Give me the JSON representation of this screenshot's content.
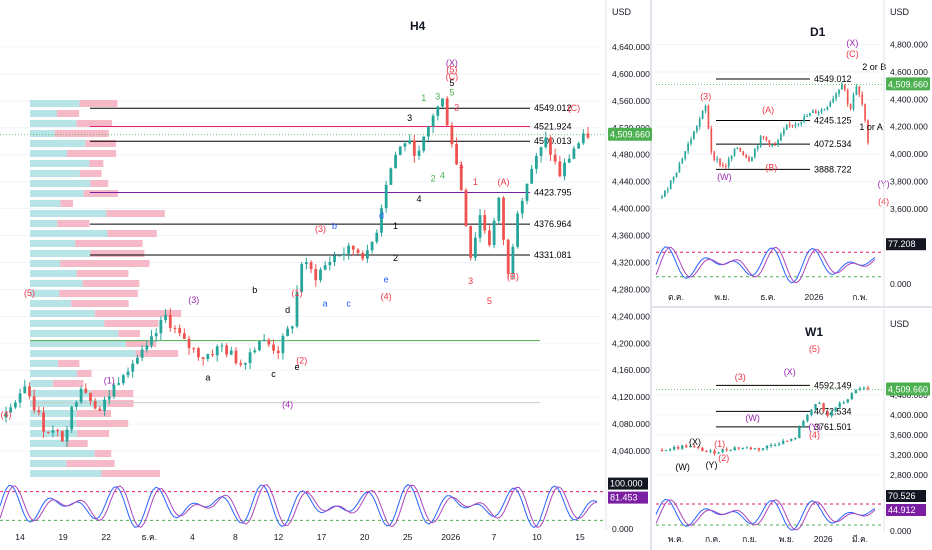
{
  "currency": "USD",
  "colors": {
    "up": "#26a69a",
    "down": "#ef5350",
    "wave_purple": "#9c27b0",
    "wave_red": "#f23645",
    "wave_black": "#000000",
    "wave_blue": "#2962ff",
    "price_green": "#4caf50",
    "stoch_k": "#2962ff",
    "stoch_d": "#ab47bc",
    "line_red": "#e91e63",
    "line_purple": "#7b1fa2",
    "line_green": "#4caf50"
  },
  "chart_data": [
    {
      "panel": "H4",
      "type": "candlestick",
      "title": "H4",
      "ylim": [
        4000,
        4680
      ],
      "y_ticks": [
        "4,640.000",
        "4,600.000",
        "4,560.000",
        "4,520.000",
        "4,480.000",
        "4,440.000",
        "4,400.000",
        "4,360.000",
        "4,320.000",
        "4,280.000",
        "4,240.000",
        "4,200.000",
        "4,160.000",
        "4,120.000",
        "4,080.000",
        "4,040.000"
      ],
      "y_tick_values": [
        4640,
        4600,
        4560,
        4520,
        4480,
        4440,
        4400,
        4360,
        4320,
        4280,
        4240,
        4200,
        4160,
        4120,
        4080,
        4040
      ],
      "x_ticks": [
        "14",
        "19",
        "22",
        "ธ.ค.",
        "4",
        "8",
        "12",
        "17",
        "20",
        "25",
        "2026",
        "7",
        "10",
        "15"
      ],
      "current_price": "4,509.660",
      "current_price_value": 4509.66,
      "levels": [
        {
          "value": 4549.012,
          "label": "4549.012",
          "color": "#000000"
        },
        {
          "value": 4521.924,
          "label": "4521.924",
          "color": "#e91e63"
        },
        {
          "value": 4500.013,
          "label": "4500.013",
          "color": "#000000"
        },
        {
          "value": 4423.795,
          "label": "4423.795",
          "color": "#7b1fa2"
        },
        {
          "value": 4376.964,
          "label": "4376.964",
          "color": "#000000"
        },
        {
          "value": 4331.081,
          "label": "4331.081",
          "color": "#000000"
        },
        {
          "value": 4204,
          "label": "",
          "color": "#4caf50"
        },
        {
          "value": 4112,
          "label": "",
          "color": "#cccccc"
        }
      ],
      "path": [
        [
          0,
          4090
        ],
        [
          4,
          4140
        ],
        [
          8,
          4075
        ],
        [
          12,
          4060
        ],
        [
          16,
          4140
        ],
        [
          20,
          4100
        ],
        [
          25,
          4160
        ],
        [
          30,
          4190
        ],
        [
          34,
          4240
        ],
        [
          38,
          4200
        ],
        [
          42,
          4180
        ],
        [
          46,
          4195
        ],
        [
          50,
          4170
        ],
        [
          54,
          4205
        ],
        [
          58,
          4190
        ],
        [
          61,
          4230
        ],
        [
          63,
          4320
        ],
        [
          66,
          4300
        ],
        [
          70,
          4330
        ],
        [
          74,
          4340
        ],
        [
          77,
          4330
        ],
        [
          79,
          4370
        ],
        [
          81,
          4440
        ],
        [
          83,
          4480
        ],
        [
          85,
          4500
        ],
        [
          88,
          4480
        ],
        [
          91,
          4540
        ],
        [
          93,
          4560
        ],
        [
          95,
          4500
        ],
        [
          97,
          4430
        ],
        [
          99,
          4330
        ],
        [
          101,
          4390
        ],
        [
          103,
          4350
        ],
        [
          105,
          4410
        ],
        [
          107,
          4300
        ],
        [
          109,
          4400
        ],
        [
          112,
          4460
        ],
        [
          115,
          4500
        ],
        [
          118,
          4450
        ],
        [
          121,
          4490
        ],
        [
          124,
          4510
        ]
      ],
      "wave_labels": [
        {
          "text": "(5)",
          "x": 5,
          "y": 4270,
          "color": "#f23645"
        },
        {
          "text": "(4)",
          "x": 0,
          "y": 4090,
          "color": "#f23645"
        },
        {
          "text": "(1)",
          "x": 22,
          "y": 4140,
          "color": "#9c27b0"
        },
        {
          "text": "(3)",
          "x": 40,
          "y": 4260,
          "color": "#9c27b0"
        },
        {
          "text": "(4)",
          "x": 60,
          "y": 4105,
          "color": "#9c27b0"
        },
        {
          "text": "a",
          "x": 43,
          "y": 4145,
          "color": "#000000"
        },
        {
          "text": "b",
          "x": 53,
          "y": 4275,
          "color": "#000000"
        },
        {
          "text": "c",
          "x": 57,
          "y": 4150,
          "color": "#000000"
        },
        {
          "text": "d",
          "x": 60,
          "y": 4245,
          "color": "#000000"
        },
        {
          "text": "e",
          "x": 62,
          "y": 4160,
          "color": "#000000"
        },
        {
          "text": "(2)",
          "x": 63,
          "y": 4170,
          "color": "#f23645"
        },
        {
          "text": "(1)",
          "x": 62,
          "y": 4270,
          "color": "#f23645"
        },
        {
          "text": "(3)",
          "x": 67,
          "y": 4365,
          "color": "#f23645"
        },
        {
          "text": "a",
          "x": 68,
          "y": 4255,
          "color": "#2962ff"
        },
        {
          "text": "b",
          "x": 70,
          "y": 4370,
          "color": "#2962ff"
        },
        {
          "text": "c",
          "x": 73,
          "y": 4255,
          "color": "#2962ff"
        },
        {
          "text": "d",
          "x": 80,
          "y": 4385,
          "color": "#2962ff"
        },
        {
          "text": "e",
          "x": 81,
          "y": 4290,
          "color": "#2962ff"
        },
        {
          "text": "(4)",
          "x": 81,
          "y": 4265,
          "color": "#f23645"
        },
        {
          "text": "1",
          "x": 83,
          "y": 4370,
          "color": "#000000"
        },
        {
          "text": "2",
          "x": 83,
          "y": 4322,
          "color": "#000000"
        },
        {
          "text": "3",
          "x": 86,
          "y": 4530,
          "color": "#000000"
        },
        {
          "text": "4",
          "x": 88,
          "y": 4410,
          "color": "#000000"
        },
        {
          "text": "1",
          "x": 89,
          "y": 4560,
          "color": "#4caf50"
        },
        {
          "text": "2",
          "x": 91,
          "y": 4440,
          "color": "#4caf50"
        },
        {
          "text": "3",
          "x": 92,
          "y": 4562,
          "color": "#4caf50"
        },
        {
          "text": "4",
          "x": 93,
          "y": 4445,
          "color": "#4caf50"
        },
        {
          "text": "5",
          "x": 95,
          "y": 4568,
          "color": "#4caf50"
        },
        {
          "text": "5",
          "x": 95,
          "y": 4582,
          "color": "#000000"
        },
        {
          "text": "2",
          "x": 96,
          "y": 4546,
          "color": "#f23645"
        },
        {
          "text": "(X)",
          "x": 95,
          "y": 4612,
          "color": "#9c27b0"
        },
        {
          "text": "(5)",
          "x": 95,
          "y": 4602,
          "color": "#f23645"
        },
        {
          "text": "(C)",
          "x": 95,
          "y": 4592,
          "color": "#f23645"
        },
        {
          "text": "1",
          "x": 97,
          "y": 4460,
          "color": "#f23645"
        },
        {
          "text": "1",
          "x": 100,
          "y": 4435,
          "color": "#f23645"
        },
        {
          "text": "3",
          "x": 99,
          "y": 4288,
          "color": "#f23645"
        },
        {
          "text": "5",
          "x": 103,
          "y": 4258,
          "color": "#f23645"
        },
        {
          "text": "(A)",
          "x": 106,
          "y": 4435,
          "color": "#f23645"
        },
        {
          "text": "(B)",
          "x": 108,
          "y": 4295,
          "color": "#f23645"
        },
        {
          "text": "(C)",
          "x": 121,
          "y": 4545,
          "color": "#f23645"
        }
      ],
      "indicator": {
        "type": "stochastic",
        "values": [
          "100.000",
          "81.453",
          "0.000"
        ],
        "k_label": "100.000",
        "d_label": "81.453",
        "zero_label": "0.000"
      }
    },
    {
      "panel": "D1",
      "type": "candlestick",
      "title": "D1",
      "ylim": [
        3460,
        4980
      ],
      "y_ticks": [
        "4,800.000",
        "4,600.000",
        "4,400.000",
        "4,200.000",
        "4,000.000",
        "3,800.000",
        "3,600.000"
      ],
      "y_tick_values": [
        4800,
        4600,
        4400,
        4200,
        4000,
        3800,
        3600
      ],
      "x_ticks": [
        "ต.ค.",
        "พ.ย.",
        "ธ.ค.",
        "2026",
        "ก.พ."
      ],
      "current_price": "4,509.660",
      "current_price_value": 4509.66,
      "levels": [
        {
          "value": 4549.012,
          "label": "4549.012",
          "color": "#000000"
        },
        {
          "value": 4245.125,
          "label": "4245.125",
          "color": "#000000"
        },
        {
          "value": 4072.534,
          "label": "4072.534",
          "color": "#000000"
        },
        {
          "value": 3888.722,
          "label": "3888.722",
          "color": "#000000"
        }
      ],
      "path": [
        [
          0,
          3680
        ],
        [
          5,
          3900
        ],
        [
          10,
          4150
        ],
        [
          14,
          4350
        ],
        [
          16,
          3990
        ],
        [
          20,
          3900
        ],
        [
          24,
          4050
        ],
        [
          28,
          3960
        ],
        [
          32,
          4130
        ],
        [
          36,
          4050
        ],
        [
          40,
          4200
        ],
        [
          44,
          4240
        ],
        [
          48,
          4300
        ],
        [
          52,
          4330
        ],
        [
          56,
          4450
        ],
        [
          58,
          4540
        ],
        [
          60,
          4300
        ],
        [
          62,
          4500
        ],
        [
          64,
          4380
        ],
        [
          66,
          4100
        ]
      ],
      "wave_labels": [
        {
          "text": "(3)",
          "x": 14,
          "y": 4400,
          "color": "#f23645"
        },
        {
          "text": "(W)",
          "x": 20,
          "y": 3810,
          "color": "#9c27b0"
        },
        {
          "text": "(A)",
          "x": 34,
          "y": 4300,
          "color": "#f23645"
        },
        {
          "text": "(B)",
          "x": 35,
          "y": 3880,
          "color": "#f23645"
        },
        {
          "text": "(X)",
          "x": 61,
          "y": 4790,
          "color": "#9c27b0"
        },
        {
          "text": "(C)",
          "x": 61,
          "y": 4710,
          "color": "#f23645"
        },
        {
          "text": "2 or B",
          "x": 68,
          "y": 4615,
          "color": "#000000"
        },
        {
          "text": "1 or A",
          "x": 67,
          "y": 4175,
          "color": "#000000"
        },
        {
          "text": "(Y)",
          "x": 71,
          "y": 3760,
          "color": "#9c27b0"
        },
        {
          "text": "(4)",
          "x": 71,
          "y": 3630,
          "color": "#f23645"
        }
      ],
      "indicator": {
        "type": "stochastic",
        "k_label": "77.208",
        "zero_label": "0.000"
      }
    },
    {
      "panel": "W1",
      "type": "candlestick",
      "title": "W1",
      "ylim": [
        2500,
        5400
      ],
      "y_ticks": [
        "4,400.000",
        "4,000.000",
        "3,600.000",
        "3,200.000",
        "2,800.000"
      ],
      "y_tick_values": [
        4400,
        4000,
        3600,
        3200,
        2800
      ],
      "x_ticks": [
        "พ.ค.",
        "ก.ค.",
        "ก.ย.",
        "พ.ย.",
        "2026",
        "มี.ค."
      ],
      "current_price": "4,509.660",
      "current_price_value": 4509.66,
      "levels": [
        {
          "value": 4592.149,
          "label": "4592.149",
          "color": "#000000"
        },
        {
          "value": 4072.534,
          "label": "4072.534",
          "color": "#000000"
        },
        {
          "value": 3761.501,
          "label": "3761.501",
          "color": "#000000"
        }
      ],
      "path": [
        [
          0,
          3300
        ],
        [
          6,
          3380
        ],
        [
          12,
          3250
        ],
        [
          18,
          3350
        ],
        [
          24,
          3320
        ],
        [
          28,
          3450
        ],
        [
          32,
          3500
        ],
        [
          35,
          4000
        ],
        [
          38,
          4250
        ],
        [
          40,
          3950
        ],
        [
          42,
          4150
        ],
        [
          44,
          4250
        ],
        [
          46,
          4400
        ],
        [
          48,
          4550
        ],
        [
          50,
          4500
        ]
      ],
      "wave_labels": [
        {
          "text": "(X)",
          "x": 8,
          "y": 3400,
          "color": "#000000"
        },
        {
          "text": "(W)",
          "x": 5,
          "y": 2900,
          "color": "#000000"
        },
        {
          "text": "(Y)",
          "x": 12,
          "y": 2940,
          "color": "#000000"
        },
        {
          "text": "(1)",
          "x": 14,
          "y": 3360,
          "color": "#f23645"
        },
        {
          "text": "(2)",
          "x": 15,
          "y": 3080,
          "color": "#f23645"
        },
        {
          "text": "(3)",
          "x": 19,
          "y": 4700,
          "color": "#f23645"
        },
        {
          "text": "(W)",
          "x": 22,
          "y": 3880,
          "color": "#9c27b0"
        },
        {
          "text": "(X)",
          "x": 31,
          "y": 4800,
          "color": "#9c27b0"
        },
        {
          "text": "(5)",
          "x": 37,
          "y": 5260,
          "color": "#f23645"
        },
        {
          "text": "(Y)",
          "x": 37,
          "y": 3700,
          "color": "#9c27b0"
        },
        {
          "text": "(4)",
          "x": 37,
          "y": 3540,
          "color": "#f23645"
        }
      ],
      "indicator": {
        "type": "stochastic",
        "k_label": "70.526",
        "d_label": "44.912",
        "zero_label": "0.000"
      }
    }
  ]
}
